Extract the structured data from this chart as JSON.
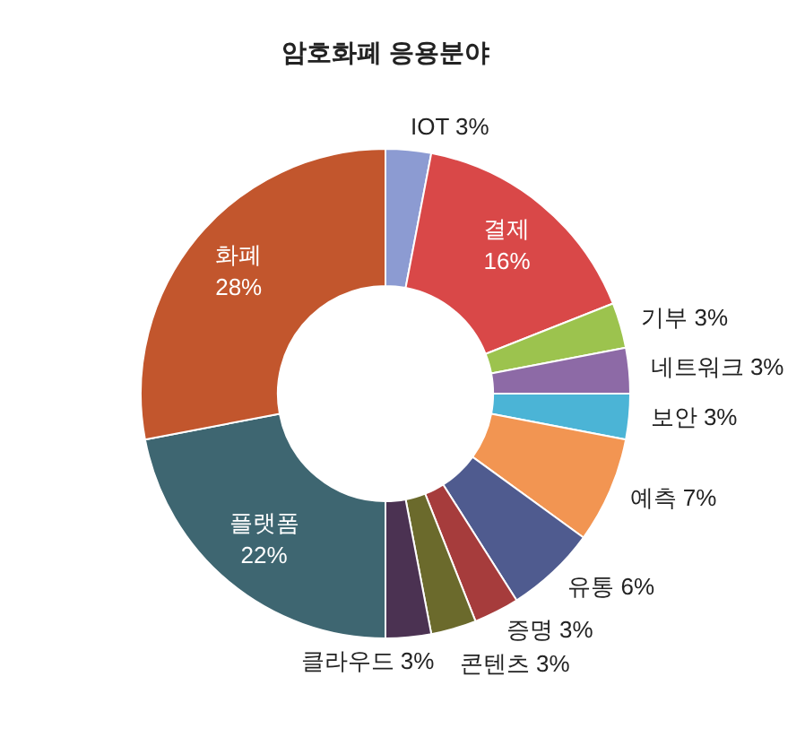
{
  "chart_data": {
    "type": "donut",
    "title": "암호화폐 응용분야",
    "categories": [
      "IOT",
      "결제",
      "기부",
      "네트워크",
      "보안",
      "예측",
      "유통",
      "증명",
      "콘텐츠",
      "클라우드",
      "플랫폼",
      "화폐"
    ],
    "values": [
      3,
      16,
      3,
      3,
      3,
      7,
      6,
      3,
      3,
      3,
      22,
      28
    ],
    "value_labels": [
      "3%",
      "16%",
      "3%",
      "3%",
      "3%",
      "7%",
      "6%",
      "3%",
      "3%",
      "3%",
      "22%",
      "28%"
    ],
    "colors": [
      "#8c9bd2",
      "#d94848",
      "#9cc34e",
      "#8d6aa6",
      "#4bb4d6",
      "#f29552",
      "#4f5b8f",
      "#a63c3c",
      "#6b6a2c",
      "#4b3252",
      "#3e6671",
      "#c2562d"
    ],
    "legend": false
  }
}
